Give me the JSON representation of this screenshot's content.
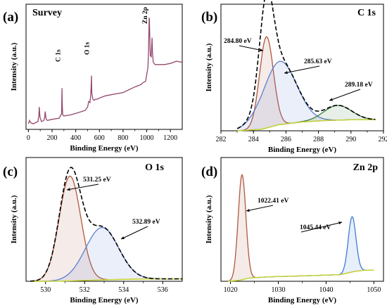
{
  "figure": {
    "panels": [
      {
        "id": "a",
        "tag": "(a)",
        "title": "Survey"
      },
      {
        "id": "b",
        "tag": "(b)",
        "title": "C 1s"
      },
      {
        "id": "c",
        "tag": "(c)",
        "title": "O 1s"
      },
      {
        "id": "d",
        "tag": "(d)",
        "title": "Zn 2p"
      }
    ]
  },
  "chart_data": [
    {
      "type": "line",
      "panel": "a",
      "title": "Survey",
      "xlabel": "Binding Energy (eV)",
      "ylabel": "Intensity (a.u.)",
      "xlim": [
        -20,
        1300
      ],
      "xticks": [
        0,
        200,
        400,
        600,
        800,
        1000,
        1200
      ],
      "y_ticks_labeled": false,
      "colors": {
        "spectrum": "#93496f"
      },
      "annotations": [
        {
          "text": "C 1s",
          "x": 285
        },
        {
          "text": "O 1s",
          "x": 531
        },
        {
          "text": "Zn 2p",
          "x": 1022
        }
      ],
      "series": [
        {
          "x": [
            0,
            10,
            20,
            40,
            60,
            80,
            88,
            92,
            98,
            110,
            130,
            138,
            142,
            150,
            160,
            200,
            260,
            280,
            284,
            286,
            290,
            300,
            360,
            420,
            480,
            500,
            510,
            520,
            526,
            530,
            533,
            536,
            545,
            555,
            565,
            580,
            600,
            650,
            700,
            800,
            900,
            950,
            970,
            990,
            1000,
            1010,
            1015,
            1020,
            1022,
            1024,
            1030,
            1038,
            1042,
            1045,
            1048,
            1055,
            1070,
            1100,
            1150,
            1200,
            1250,
            1300
          ],
          "values": [
            0.05,
            0.08,
            0.06,
            0.05,
            0.06,
            0.07,
            0.12,
            0.2,
            0.11,
            0.07,
            0.08,
            0.11,
            0.16,
            0.09,
            0.08,
            0.09,
            0.1,
            0.14,
            0.37,
            0.22,
            0.13,
            0.12,
            0.13,
            0.15,
            0.17,
            0.2,
            0.25,
            0.24,
            0.3,
            0.38,
            0.48,
            0.32,
            0.27,
            0.26,
            0.27,
            0.27,
            0.28,
            0.3,
            0.31,
            0.33,
            0.38,
            0.4,
            0.42,
            0.43,
            0.49,
            0.55,
            0.7,
            0.98,
            1.0,
            0.9,
            0.66,
            0.65,
            0.75,
            0.82,
            0.7,
            0.6,
            0.58,
            0.58,
            0.58,
            0.59,
            0.61,
            0.6
          ]
        }
      ]
    },
    {
      "type": "line",
      "panel": "b",
      "title": "C 1s",
      "xlabel": "Binding Energy (eV)",
      "ylabel": "Intensity (a.u.)",
      "xlim": [
        282,
        292
      ],
      "xticks": [
        282,
        284,
        286,
        288,
        290,
        292
      ],
      "y_ticks_labeled": false,
      "annotations": [
        {
          "text": "284.80 eV",
          "x": 284.8
        },
        {
          "text": "285.63 eV",
          "x": 285.63
        },
        {
          "text": "289.18 eV",
          "x": 289.18
        }
      ],
      "peaks": [
        {
          "center": 284.8,
          "height": 0.62,
          "fwhm": 1.0,
          "color": "#b0583f"
        },
        {
          "center": 285.63,
          "height": 0.43,
          "fwhm": 2.4,
          "color": "#5b7fd0"
        },
        {
          "center": 289.18,
          "height": 0.1,
          "fwhm": 2.0,
          "color": "#3f7a3f"
        }
      ],
      "background": {
        "x": [
          283,
          284.5,
          285.5,
          287,
          288.5,
          290,
          291.5
        ],
        "values": [
          0.0,
          0.01,
          0.04,
          0.06,
          0.07,
          0.075,
          0.075
        ],
        "color": "#c6d62e"
      },
      "envelope": {
        "style": "dashed",
        "color": "#000000"
      }
    },
    {
      "type": "line",
      "panel": "c",
      "title": "O 1s",
      "xlabel": "Binding Energy (eV)",
      "ylabel": "Intensity (a.u.)",
      "xlim": [
        529,
        537
      ],
      "xticks": [
        530,
        532,
        534,
        536
      ],
      "y_ticks_labeled": false,
      "annotations": [
        {
          "text": "531.25 eV",
          "x": 531.25
        },
        {
          "text": "532.89 eV",
          "x": 532.89
        }
      ],
      "peaks": [
        {
          "center": 531.25,
          "height": 0.88,
          "fwhm": 1.3,
          "color": "#b0583f"
        },
        {
          "center": 532.89,
          "height": 0.44,
          "fwhm": 2.0,
          "color": "#5b7fd0"
        }
      ],
      "background": {
        "x": [
          529.2,
          530.5,
          531.5,
          533,
          534.5,
          536,
          537
        ],
        "values": [
          0.0,
          0.0,
          0.005,
          0.012,
          0.018,
          0.02,
          0.02
        ],
        "color": "#c6d62e"
      },
      "envelope": {
        "style": "dashed",
        "color": "#000000"
      }
    },
    {
      "type": "line",
      "panel": "d",
      "title": "Zn 2p",
      "xlabel": "Binding Energy (eV)",
      "ylabel": "Intensity (a.u.)",
      "xlim": [
        1018,
        1052
      ],
      "xticks": [
        1020,
        1030,
        1040,
        1050
      ],
      "y_ticks_labeled": false,
      "annotations": [
        {
          "text": "1022.41 eV",
          "x": 1022.41
        },
        {
          "text": "1045.44 eV",
          "x": 1045.44
        }
      ],
      "peaks": [
        {
          "center": 1022.41,
          "height": 0.95,
          "fwhm": 1.9,
          "color": "#b0583f"
        },
        {
          "center": 1045.44,
          "height": 0.5,
          "fwhm": 1.9,
          "color": "#3d7bd8"
        }
      ],
      "background": {
        "x": [
          1019.5,
          1022,
          1024,
          1028,
          1036,
          1043,
          1046,
          1048,
          1050
        ],
        "values": [
          0.0,
          0.01,
          0.03,
          0.04,
          0.05,
          0.06,
          0.09,
          0.1,
          0.1
        ],
        "color": "#c6d62e"
      }
    }
  ]
}
